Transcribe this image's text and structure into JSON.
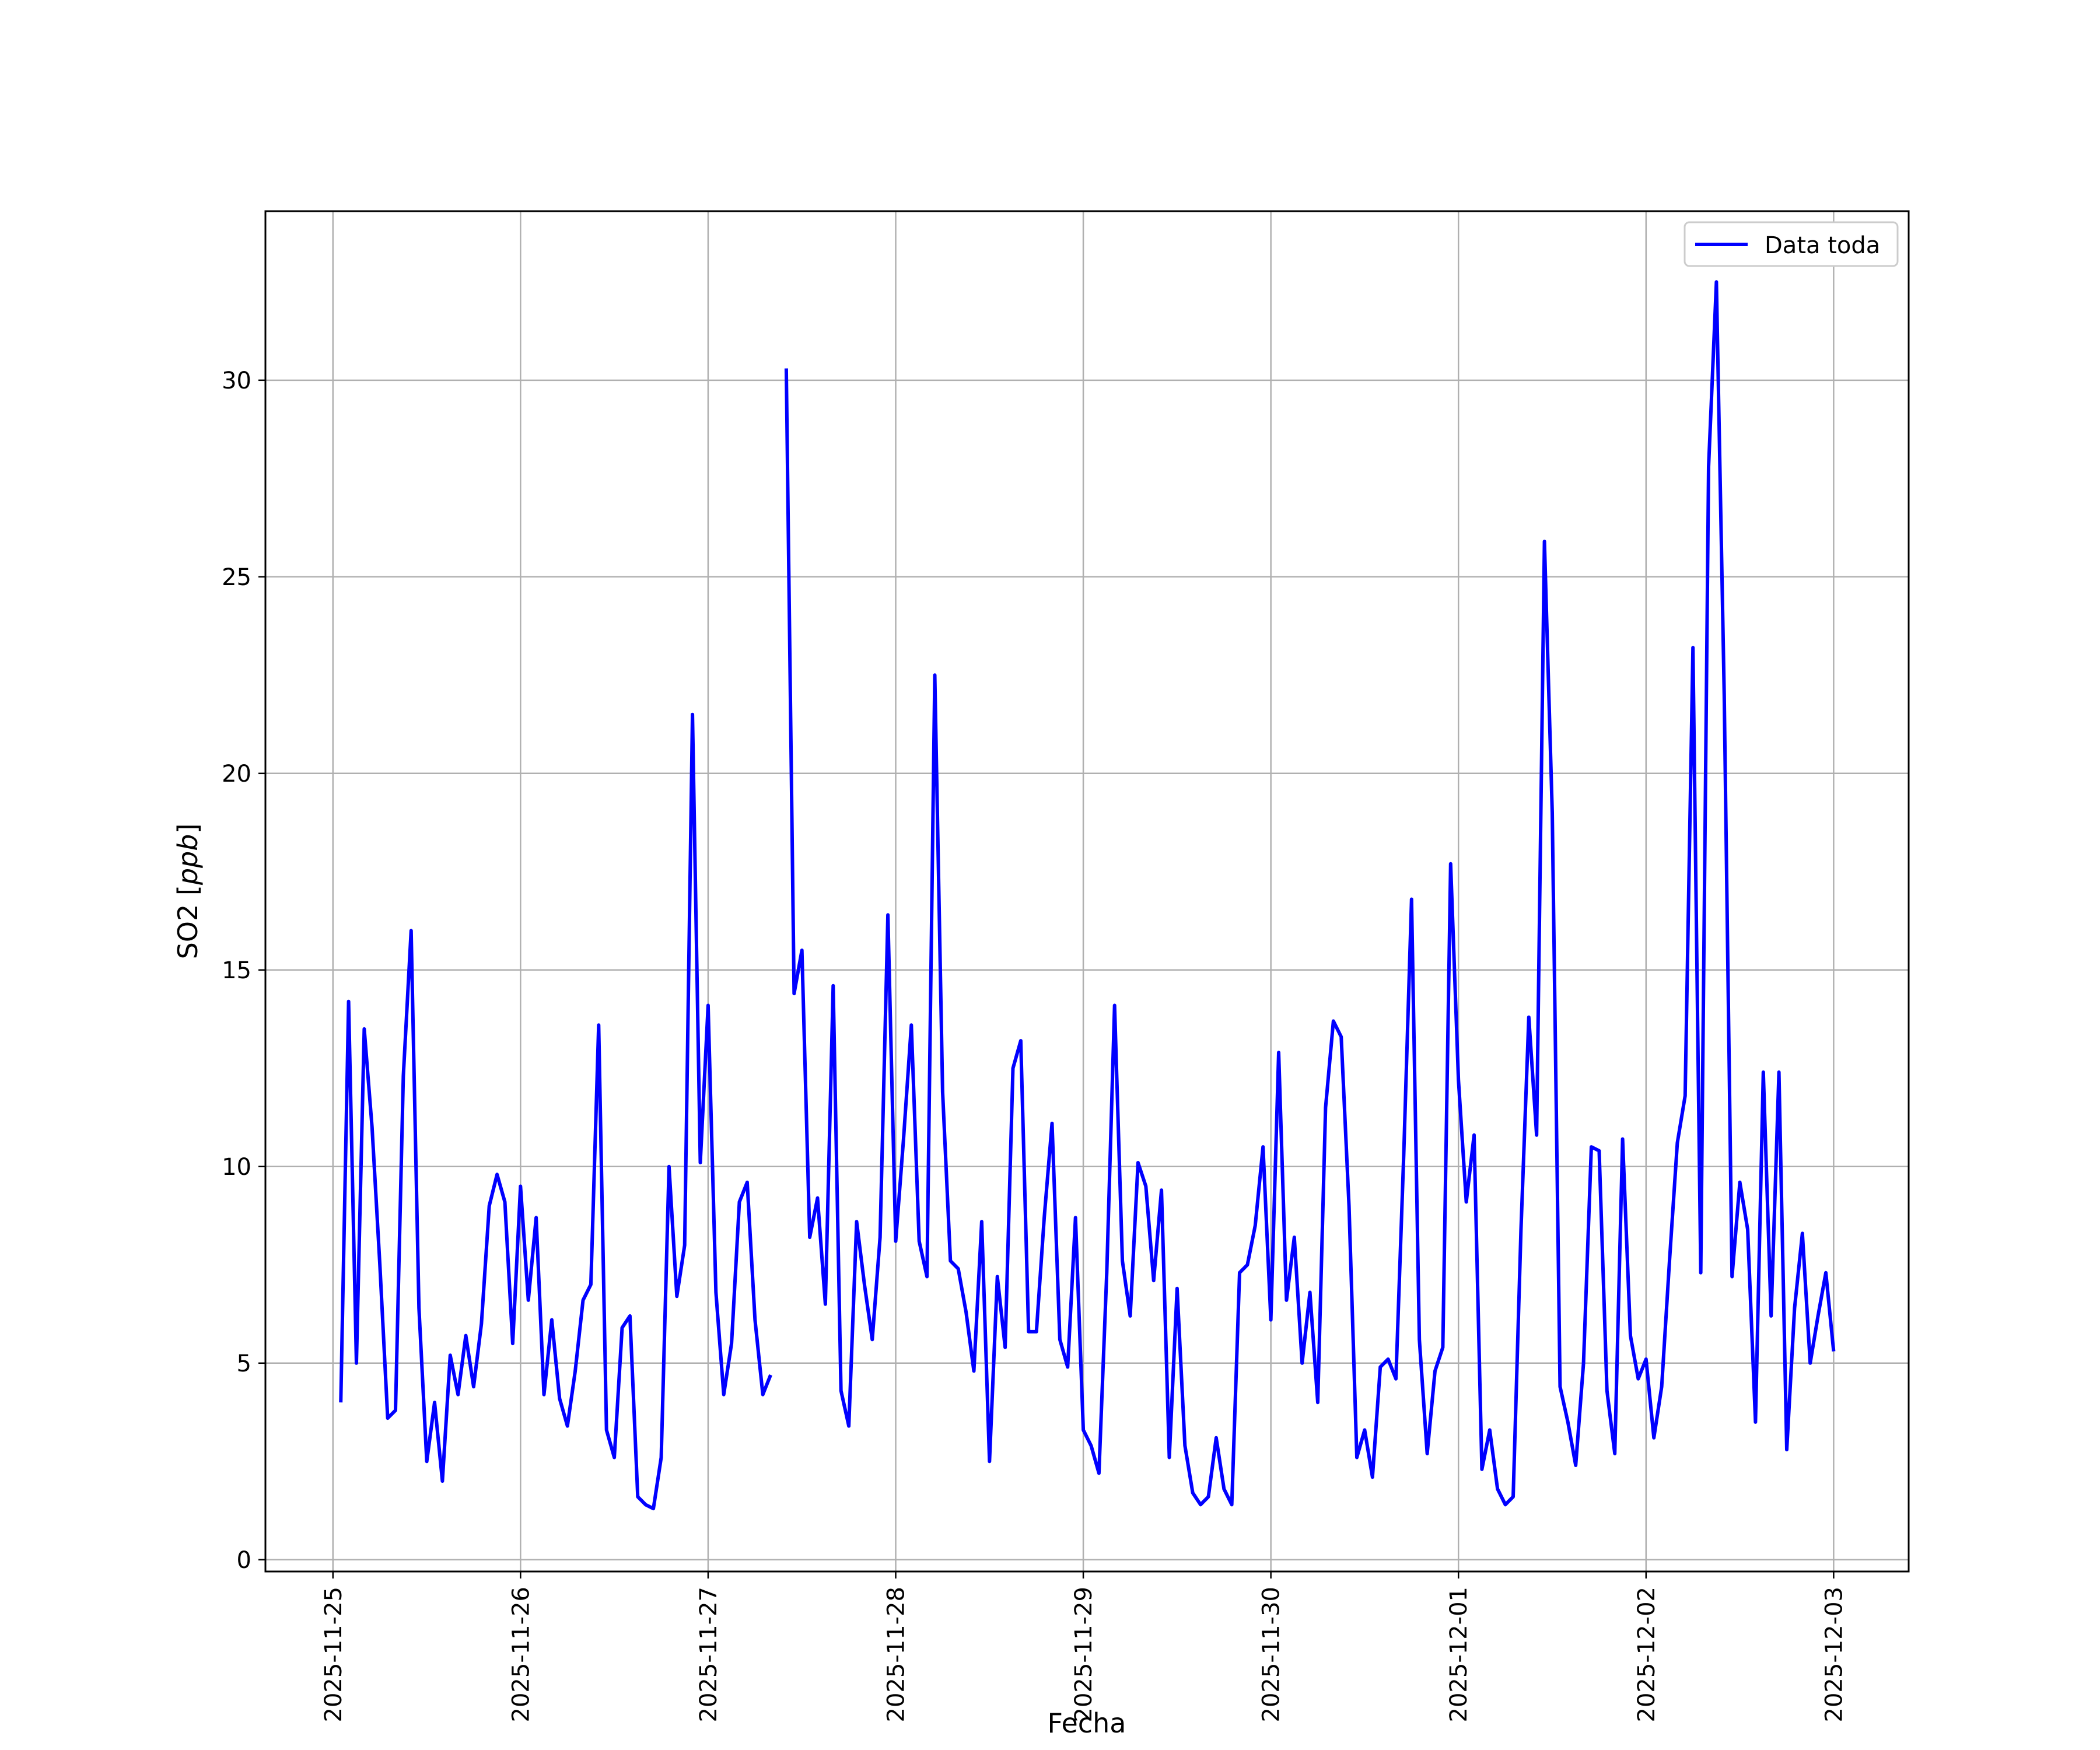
{
  "chart_data": {
    "type": "line",
    "xlabel": "Fecha",
    "ylabel": "SO2 [ppb]",
    "ylabel_parts": {
      "plain": "SO2 [",
      "italic": "ppb",
      "close": "]"
    },
    "x_ticks": [
      "2025-11-25",
      "2025-11-26",
      "2025-11-27",
      "2025-11-28",
      "2025-11-29",
      "2025-11-30",
      "2025-12-01",
      "2025-12-02",
      "2025-12-03"
    ],
    "y_ticks": [
      0,
      5,
      10,
      15,
      20,
      25,
      30
    ],
    "xlim_days_from_2025_11_25": [
      -0.36,
      8.4
    ],
    "ylim": [
      -0.3,
      34.3
    ],
    "grid": true,
    "legend_position": "top-right",
    "line_color": "#0000ff",
    "series": [
      {
        "name": "Data toda",
        "x_start": "2025-11-25T01:00",
        "x_step_hours": 1,
        "values": [
          4.0,
          14.2,
          5.0,
          13.5,
          11.0,
          7.5,
          3.6,
          3.8,
          12.3,
          16.0,
          6.4,
          2.5,
          4.0,
          2.0,
          5.2,
          4.2,
          5.7,
          4.4,
          6.0,
          9.0,
          9.8,
          9.1,
          5.5,
          9.5,
          6.6,
          8.7,
          4.2,
          6.1,
          4.1,
          3.4,
          4.8,
          6.6,
          7.0,
          13.6,
          3.3,
          2.6,
          5.9,
          6.2,
          1.6,
          1.4,
          1.3,
          2.6,
          10.0,
          6.7,
          8.0,
          21.5,
          10.1,
          14.1,
          6.8,
          4.2,
          5.5,
          9.1,
          9.6,
          6.1,
          4.2,
          4.7,
          null,
          30.3,
          14.4,
          15.5,
          8.2,
          9.2,
          6.5,
          14.6,
          4.3,
          3.4,
          8.6,
          7.0,
          5.6,
          8.2,
          16.4,
          8.1,
          10.7,
          13.6,
          8.1,
          7.2,
          22.5,
          11.9,
          7.6,
          7.4,
          6.3,
          4.8,
          8.6,
          2.5,
          7.2,
          5.4,
          12.5,
          13.2,
          5.8,
          5.8,
          8.7,
          11.1,
          5.6,
          4.9,
          8.7,
          3.3,
          2.9,
          2.2,
          7.3,
          14.1,
          7.6,
          6.2,
          10.1,
          9.5,
          7.1,
          9.4,
          2.6,
          6.9,
          2.9,
          1.7,
          1.4,
          1.6,
          3.1,
          1.8,
          1.4,
          7.3,
          7.5,
          8.5,
          10.5,
          6.1,
          12.9,
          6.6,
          8.2,
          5.0,
          6.8,
          4.0,
          11.5,
          13.7,
          13.3,
          9.0,
          2.6,
          3.3,
          2.1,
          4.9,
          5.1,
          4.6,
          10.3,
          16.8,
          5.6,
          2.7,
          4.8,
          5.4,
          17.7,
          12.2,
          9.1,
          10.8,
          2.3,
          3.3,
          1.8,
          1.4,
          1.6,
          8.4,
          13.8,
          10.8,
          25.9,
          19.0,
          4.4,
          3.5,
          2.4,
          5.0,
          10.5,
          10.4,
          4.3,
          2.7,
          10.7,
          5.7,
          4.6,
          5.1,
          3.1,
          4.4,
          7.6,
          10.6,
          11.8,
          23.2,
          7.3,
          27.8,
          32.5,
          22.0,
          7.2,
          9.6,
          8.4,
          3.5,
          12.4,
          6.2,
          12.4,
          2.8,
          6.4,
          8.3,
          5.0,
          6.2,
          7.3,
          5.3
        ]
      }
    ]
  }
}
